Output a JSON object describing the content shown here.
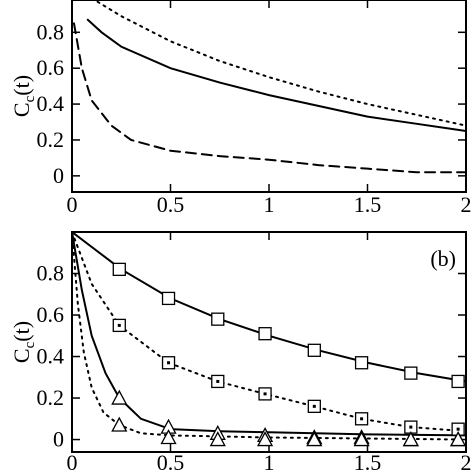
{
  "chart_data": [
    {
      "type": "line",
      "ylabel": {
        "main": "C",
        "sub": "c",
        "tail": "(t)"
      },
      "xlim": [
        0,
        2
      ],
      "ylim": [
        -0.09,
        0.98
      ],
      "xticks": [
        0,
        0.5,
        1,
        1.5,
        2
      ],
      "yticks": [
        0,
        0.2,
        0.4,
        0.6,
        0.8
      ],
      "series": [
        {
          "color": "#000000",
          "dash": "dotted",
          "x": [
            0.13,
            0.25,
            0.5,
            0.75,
            1,
            1.25,
            1.5,
            1.75,
            2
          ],
          "values": [
            0.97,
            0.89,
            0.75,
            0.64,
            0.55,
            0.47,
            0.4,
            0.34,
            0.28
          ]
        },
        {
          "color": "#000000",
          "dash": "solid",
          "x": [
            0.08,
            0.15,
            0.25,
            0.5,
            0.75,
            1,
            1.25,
            1.5,
            1.75,
            2
          ],
          "values": [
            0.87,
            0.8,
            0.72,
            0.6,
            0.52,
            0.45,
            0.39,
            0.33,
            0.29,
            0.25
          ]
        },
        {
          "color": "#000000",
          "dash": "dashed",
          "x": [
            0.01,
            0.05,
            0.1,
            0.2,
            0.3,
            0.5,
            0.75,
            1,
            1.25,
            1.5,
            1.75,
            2
          ],
          "values": [
            0.85,
            0.6,
            0.42,
            0.28,
            0.2,
            0.14,
            0.11,
            0.09,
            0.06,
            0.04,
            0.02,
            0.02
          ]
        }
      ]
    },
    {
      "type": "line",
      "ylabel": {
        "main": "C",
        "sub": "c",
        "tail": "(t)"
      },
      "annotation": "(b)",
      "xlim": [
        0,
        2
      ],
      "ylim": [
        -0.06,
        1.0
      ],
      "xticks": [
        0,
        0.5,
        1,
        1.5,
        2
      ],
      "yticks": [
        0,
        0.2,
        0.4,
        0.6,
        0.8
      ],
      "series": [
        {
          "color": "#000000",
          "dash": "solid",
          "marker": "square",
          "x": [
            0,
            0.25,
            0.5,
            0.75,
            1,
            1.25,
            1.5,
            1.75,
            2
          ],
          "values": [
            1.0,
            0.82,
            0.68,
            0.58,
            0.5,
            0.43,
            0.37,
            0.32,
            0.28
          ],
          "markers": {
            "x": [
              0.24,
              0.49,
              0.74,
              0.98,
              1.23,
              1.47,
              1.72,
              1.96
            ],
            "values": [
              0.82,
              0.68,
              0.58,
              0.51,
              0.43,
              0.37,
              0.32,
              0.28
            ]
          }
        },
        {
          "color": "#000000",
          "dash": "dotted",
          "marker": "square",
          "x": [
            0,
            0.1,
            0.24,
            0.49,
            0.74,
            0.98,
            1.23,
            1.47,
            1.72,
            2
          ],
          "values": [
            1.0,
            0.75,
            0.55,
            0.37,
            0.28,
            0.22,
            0.16,
            0.1,
            0.06,
            0.04
          ],
          "markers": {
            "x": [
              0.24,
              0.49,
              0.74,
              0.98,
              1.23,
              1.47,
              1.72,
              1.96
            ],
            "values": [
              0.55,
              0.37,
              0.28,
              0.22,
              0.16,
              0.1,
              0.06,
              0.05
            ]
          }
        },
        {
          "color": "#000000",
          "dash": "solid",
          "marker": "triangle",
          "x": [
            0,
            0.05,
            0.1,
            0.17,
            0.24,
            0.35,
            0.5,
            0.75,
            1,
            1.5,
            2
          ],
          "values": [
            1.0,
            0.72,
            0.5,
            0.32,
            0.2,
            0.1,
            0.05,
            0.04,
            0.035,
            0.025,
            0.02
          ],
          "markers": {
            "x": [
              0.24,
              0.49,
              0.74,
              0.98,
              1.23,
              1.47,
              1.72,
              1.96
            ],
            "values": [
              0.2,
              0.06,
              0.03,
              0.02,
              0.01,
              0.01,
              0.0,
              0.0
            ]
          }
        },
        {
          "color": "#000000",
          "dash": "dotted",
          "marker": "triangle",
          "x": [
            0,
            0.03,
            0.06,
            0.1,
            0.16,
            0.24,
            0.35,
            0.5,
            1,
            2
          ],
          "values": [
            1.0,
            0.65,
            0.42,
            0.25,
            0.13,
            0.07,
            0.03,
            0.02,
            0.01,
            0.0
          ],
          "markers": {
            "x": [
              0.24,
              0.49,
              0.74,
              0.98,
              1.23,
              1.47,
              1.72,
              1.96
            ],
            "values": [
              0.07,
              0.01,
              0.0,
              0.0,
              0.0,
              0.0,
              0.0,
              0.0
            ]
          }
        }
      ]
    }
  ]
}
